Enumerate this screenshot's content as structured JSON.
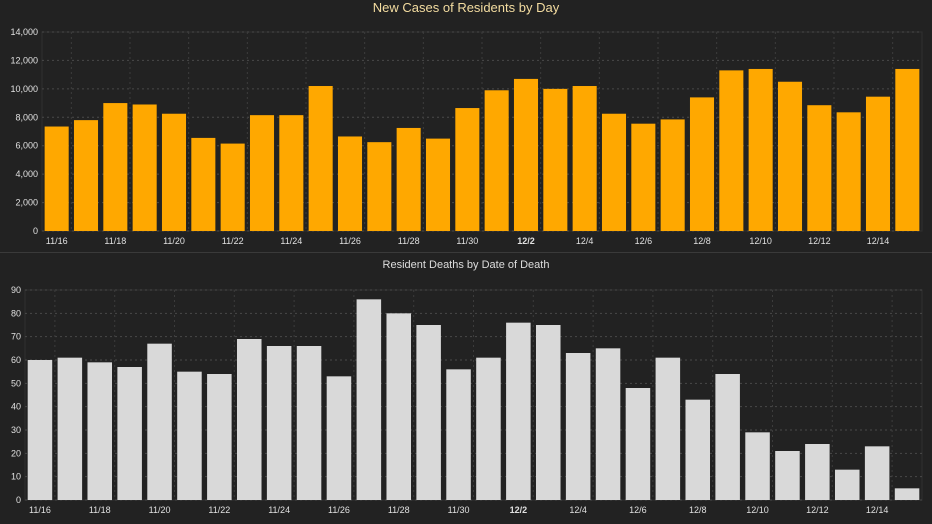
{
  "chart_data": [
    {
      "type": "bar",
      "title": "New Cases of Residents by Day",
      "categories": [
        "11/16",
        "11/17",
        "11/18",
        "11/19",
        "11/20",
        "11/21",
        "11/22",
        "11/23",
        "11/24",
        "11/25",
        "11/26",
        "11/27",
        "11/28",
        "11/29",
        "11/30",
        "12/1",
        "12/2",
        "12/3",
        "12/4",
        "12/5",
        "12/6",
        "12/7",
        "12/8",
        "12/9",
        "12/10",
        "12/11",
        "12/12",
        "12/13",
        "12/14",
        "12/15"
      ],
      "x_tick_labels": [
        "11/16",
        "11/18",
        "11/20",
        "11/22",
        "11/24",
        "11/26",
        "11/28",
        "11/30",
        "12/2",
        "12/4",
        "12/6",
        "12/8",
        "12/10",
        "12/12",
        "12/14"
      ],
      "emphasized_tick": "12/2",
      "values": [
        7350,
        7800,
        9000,
        8900,
        8250,
        6550,
        6150,
        8150,
        8150,
        10200,
        6650,
        6250,
        7250,
        6500,
        8650,
        9900,
        10700,
        10000,
        10200,
        8250,
        7550,
        7850,
        9400,
        11300,
        11400,
        10500,
        8850,
        8350,
        9450,
        11400
      ],
      "ylim": [
        0,
        14000
      ],
      "y_ticks": [
        "0",
        "2,000",
        "4,000",
        "6,000",
        "8,000",
        "10,000",
        "12,000",
        "14,000"
      ],
      "grid": true,
      "color": "#ffa800"
    },
    {
      "type": "bar",
      "title": "Resident Deaths by Date of Death",
      "categories": [
        "11/16",
        "11/17",
        "11/18",
        "11/19",
        "11/20",
        "11/21",
        "11/22",
        "11/23",
        "11/24",
        "11/25",
        "11/26",
        "11/27",
        "11/28",
        "11/29",
        "11/30",
        "12/1",
        "12/2",
        "12/3",
        "12/4",
        "12/5",
        "12/6",
        "12/7",
        "12/8",
        "12/9",
        "12/10",
        "12/11",
        "12/12",
        "12/13",
        "12/14",
        "12/15"
      ],
      "x_tick_labels": [
        "11/16",
        "11/18",
        "11/20",
        "11/22",
        "11/24",
        "11/26",
        "11/28",
        "11/30",
        "12/2",
        "12/4",
        "12/6",
        "12/8",
        "12/10",
        "12/12",
        "12/14"
      ],
      "emphasized_tick": "12/2",
      "values": [
        60,
        61,
        59,
        57,
        67,
        55,
        54,
        69,
        66,
        66,
        53,
        86,
        80,
        75,
        56,
        61,
        76,
        75,
        63,
        65,
        48,
        61,
        43,
        54,
        29,
        21,
        24,
        13,
        23,
        5
      ],
      "ylim": [
        0,
        90
      ],
      "y_ticks": [
        "0",
        "10",
        "20",
        "30",
        "40",
        "50",
        "60",
        "70",
        "80",
        "90"
      ],
      "grid": true,
      "color": "#d9d9d9"
    }
  ]
}
